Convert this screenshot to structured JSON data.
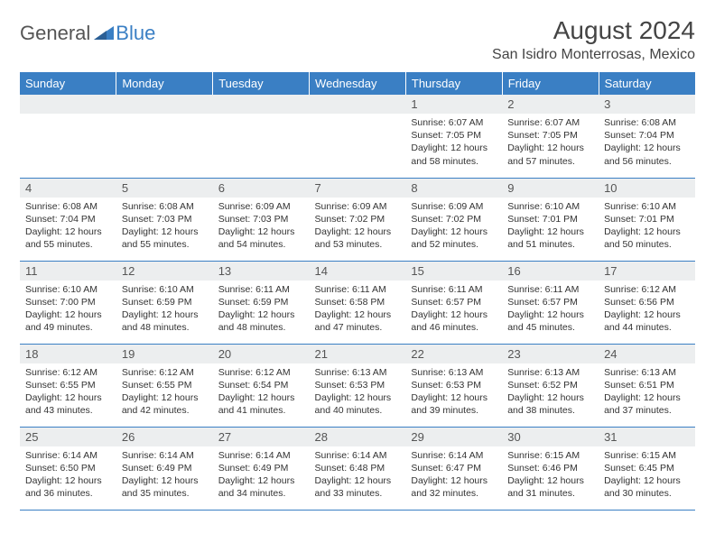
{
  "logo": {
    "general": "General",
    "blue": "Blue"
  },
  "title": "August 2024",
  "location": "San Isidro Monterrosas, Mexico",
  "colors": {
    "header_bg": "#3a7fc4",
    "header_fg": "#ffffff",
    "daynum_bg": "#eceeef",
    "border": "#3a7fc4",
    "logo_gray": "#555555",
    "logo_blue": "#3a7fc4"
  },
  "weekdays": [
    "Sunday",
    "Monday",
    "Tuesday",
    "Wednesday",
    "Thursday",
    "Friday",
    "Saturday"
  ],
  "grid": [
    [
      null,
      null,
      null,
      null,
      {
        "n": "1",
        "sr": "6:07 AM",
        "ss": "7:05 PM",
        "dl": "12 hours and 58 minutes."
      },
      {
        "n": "2",
        "sr": "6:07 AM",
        "ss": "7:05 PM",
        "dl": "12 hours and 57 minutes."
      },
      {
        "n": "3",
        "sr": "6:08 AM",
        "ss": "7:04 PM",
        "dl": "12 hours and 56 minutes."
      }
    ],
    [
      {
        "n": "4",
        "sr": "6:08 AM",
        "ss": "7:04 PM",
        "dl": "12 hours and 55 minutes."
      },
      {
        "n": "5",
        "sr": "6:08 AM",
        "ss": "7:03 PM",
        "dl": "12 hours and 55 minutes."
      },
      {
        "n": "6",
        "sr": "6:09 AM",
        "ss": "7:03 PM",
        "dl": "12 hours and 54 minutes."
      },
      {
        "n": "7",
        "sr": "6:09 AM",
        "ss": "7:02 PM",
        "dl": "12 hours and 53 minutes."
      },
      {
        "n": "8",
        "sr": "6:09 AM",
        "ss": "7:02 PM",
        "dl": "12 hours and 52 minutes."
      },
      {
        "n": "9",
        "sr": "6:10 AM",
        "ss": "7:01 PM",
        "dl": "12 hours and 51 minutes."
      },
      {
        "n": "10",
        "sr": "6:10 AM",
        "ss": "7:01 PM",
        "dl": "12 hours and 50 minutes."
      }
    ],
    [
      {
        "n": "11",
        "sr": "6:10 AM",
        "ss": "7:00 PM",
        "dl": "12 hours and 49 minutes."
      },
      {
        "n": "12",
        "sr": "6:10 AM",
        "ss": "6:59 PM",
        "dl": "12 hours and 48 minutes."
      },
      {
        "n": "13",
        "sr": "6:11 AM",
        "ss": "6:59 PM",
        "dl": "12 hours and 48 minutes."
      },
      {
        "n": "14",
        "sr": "6:11 AM",
        "ss": "6:58 PM",
        "dl": "12 hours and 47 minutes."
      },
      {
        "n": "15",
        "sr": "6:11 AM",
        "ss": "6:57 PM",
        "dl": "12 hours and 46 minutes."
      },
      {
        "n": "16",
        "sr": "6:11 AM",
        "ss": "6:57 PM",
        "dl": "12 hours and 45 minutes."
      },
      {
        "n": "17",
        "sr": "6:12 AM",
        "ss": "6:56 PM",
        "dl": "12 hours and 44 minutes."
      }
    ],
    [
      {
        "n": "18",
        "sr": "6:12 AM",
        "ss": "6:55 PM",
        "dl": "12 hours and 43 minutes."
      },
      {
        "n": "19",
        "sr": "6:12 AM",
        "ss": "6:55 PM",
        "dl": "12 hours and 42 minutes."
      },
      {
        "n": "20",
        "sr": "6:12 AM",
        "ss": "6:54 PM",
        "dl": "12 hours and 41 minutes."
      },
      {
        "n": "21",
        "sr": "6:13 AM",
        "ss": "6:53 PM",
        "dl": "12 hours and 40 minutes."
      },
      {
        "n": "22",
        "sr": "6:13 AM",
        "ss": "6:53 PM",
        "dl": "12 hours and 39 minutes."
      },
      {
        "n": "23",
        "sr": "6:13 AM",
        "ss": "6:52 PM",
        "dl": "12 hours and 38 minutes."
      },
      {
        "n": "24",
        "sr": "6:13 AM",
        "ss": "6:51 PM",
        "dl": "12 hours and 37 minutes."
      }
    ],
    [
      {
        "n": "25",
        "sr": "6:14 AM",
        "ss": "6:50 PM",
        "dl": "12 hours and 36 minutes."
      },
      {
        "n": "26",
        "sr": "6:14 AM",
        "ss": "6:49 PM",
        "dl": "12 hours and 35 minutes."
      },
      {
        "n": "27",
        "sr": "6:14 AM",
        "ss": "6:49 PM",
        "dl": "12 hours and 34 minutes."
      },
      {
        "n": "28",
        "sr": "6:14 AM",
        "ss": "6:48 PM",
        "dl": "12 hours and 33 minutes."
      },
      {
        "n": "29",
        "sr": "6:14 AM",
        "ss": "6:47 PM",
        "dl": "12 hours and 32 minutes."
      },
      {
        "n": "30",
        "sr": "6:15 AM",
        "ss": "6:46 PM",
        "dl": "12 hours and 31 minutes."
      },
      {
        "n": "31",
        "sr": "6:15 AM",
        "ss": "6:45 PM",
        "dl": "12 hours and 30 minutes."
      }
    ]
  ],
  "labels": {
    "sunrise": "Sunrise: ",
    "sunset": "Sunset: ",
    "daylight": "Daylight: "
  }
}
